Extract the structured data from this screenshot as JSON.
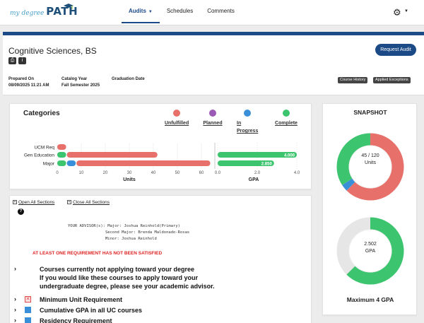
{
  "nav": {
    "logo_small": "my degree",
    "logo_big": "PATH",
    "tabs": [
      {
        "label": "Audits",
        "active": true,
        "has_caret": true
      },
      {
        "label": "Schedules",
        "active": false,
        "has_caret": false
      },
      {
        "label": "Comments",
        "active": false,
        "has_caret": false
      }
    ],
    "settings_icon": "gear-icon"
  },
  "header": {
    "degree_title": "Cognitive Sciences, BS",
    "request_audit_label": "Request Audit",
    "prepared_on_label": "Prepared On",
    "prepared_on_value": "08/09/2025 11:21 AM",
    "catalog_year_label": "Catalog Year",
    "catalog_year_value": "Fall Semester 2025",
    "graduation_date_label": "Graduation Date",
    "graduation_date_value": "",
    "tags": [
      "Course History",
      "Applied Exceptions"
    ]
  },
  "categories": {
    "title": "Categories",
    "legend": [
      {
        "label": "Unfulfilled",
        "color": "#e8706a"
      },
      {
        "label": "Planned",
        "color": "#9b59b6"
      },
      {
        "label": "In Progress",
        "color": "#3a8fd9"
      },
      {
        "label": "Complete",
        "color": "#3cc46f"
      }
    ]
  },
  "chart_data": {
    "type": "bar",
    "categories": [
      "UCM Req",
      "Gen Education",
      "Major"
    ],
    "units_axis": {
      "label": "Units",
      "ticks": [
        0,
        10,
        20,
        30,
        40,
        50,
        60
      ],
      "range": [
        0,
        60
      ]
    },
    "gpa_axis": {
      "label": "GPA",
      "ticks": [
        "0.0",
        "2.0",
        "4.0"
      ],
      "range": [
        0,
        4
      ]
    },
    "unit_series": [
      {
        "name": "Complete",
        "color": "#3cc46f",
        "values": [
          0,
          4,
          4
        ]
      },
      {
        "name": "In Progress",
        "color": "#3a8fd9",
        "values": [
          0,
          0,
          4
        ]
      },
      {
        "name": "Unfulfilled",
        "color": "#e8706a",
        "values": [
          4,
          38,
          56
        ]
      }
    ],
    "gpa_values": [
      null,
      4.0,
      2.85
    ],
    "gpa_labels": [
      "",
      "4.000",
      "2.850"
    ]
  },
  "sections": {
    "open_all": "Open All Sections",
    "close_all": "Close All Sections",
    "advisor_text": "YOUR ADVISOR(s): Major: Joshua Reinhold(Primary)\n                Second Major: Brenda Maldonado-Rosas\n                Minor: Joshua Reinhold",
    "warning": "AT LEAST ONE REQUIREMENT HAS NOT BEEN SATISFIED",
    "requirements": [
      {
        "text": "Courses currently not applying toward your degree\nIf you would like these courses to apply toward your\nundergraduate degree, please see your academic advisor.",
        "icon": "none"
      },
      {
        "text": "Minimum Unit Requirement",
        "icon": "x-red-icon"
      },
      {
        "text": "Cumulative GPA in all UC courses",
        "icon": "progress-blue-icon"
      },
      {
        "text": "Residency Requirement",
        "icon": "progress-blue-icon"
      }
    ]
  },
  "snapshot": {
    "title": "SNAPSHOT",
    "units_label": "45 / 120\nUnits",
    "units_complete": 41,
    "units_in_progress": 4,
    "units_total": 120,
    "gpa_label": "2.502\nGPA",
    "gpa_value": 2.502,
    "gpa_max": 4,
    "footer": "Maximum 4 GPA",
    "colors": {
      "complete": "#3cc46f",
      "in_progress": "#3a8fd9",
      "unfulfilled": "#e8706a",
      "remaining": "#e6e6e6"
    }
  }
}
